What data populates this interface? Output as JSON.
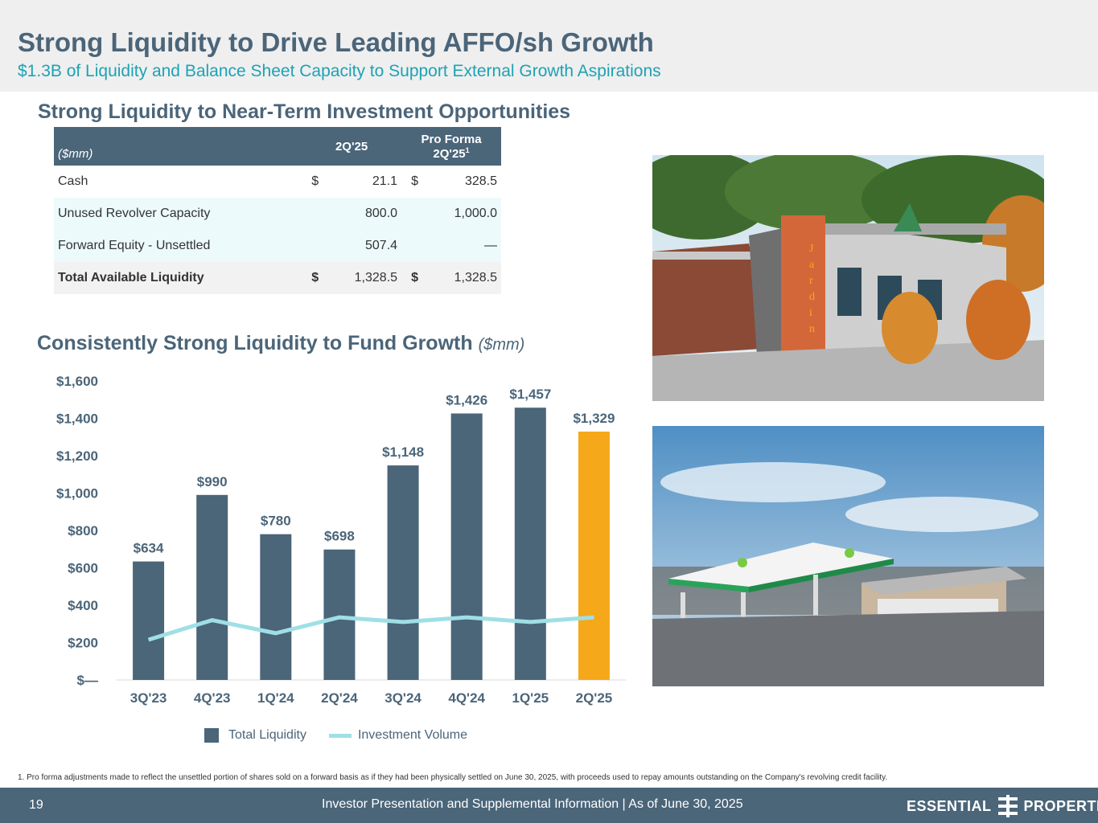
{
  "header": {
    "title": "Strong Liquidity to Drive Leading AFFO/sh Growth",
    "subtitle": "$1.3B of Liquidity and Balance Sheet Capacity to Support External Growth Aspirations"
  },
  "liquidity_table": {
    "section_title": "Strong Liquidity to Near-Term Investment Opportunities",
    "unit_label": "($mm)",
    "col1": "2Q'25",
    "col2_line1": "Pro Forma",
    "col2_line2": "2Q'25",
    "col2_footnote": "1",
    "rows": [
      {
        "label": "Cash",
        "cur1": "$",
        "v1": "21.1",
        "cur2": "$",
        "v2": "328.5"
      },
      {
        "label": "Unused Revolver Capacity",
        "cur1": "",
        "v1": "800.0",
        "cur2": "",
        "v2": "1,000.0"
      },
      {
        "label": "Forward Equity - Unsettled",
        "cur1": "",
        "v1": "507.4",
        "cur2": "",
        "v2": "—"
      },
      {
        "label": "Total Available Liquidity",
        "cur1": "$",
        "v1": "1,328.5",
        "cur2": "$",
        "v2": "1,328.5"
      }
    ]
  },
  "chart_section": {
    "title": "Consistently Strong Liquidity to Fund Growth",
    "unit": "($mm)"
  },
  "chart_data": {
    "type": "bar",
    "categories": [
      "3Q'23",
      "4Q'23",
      "1Q'24",
      "2Q'24",
      "3Q'24",
      "4Q'24",
      "1Q'25",
      "2Q'25"
    ],
    "series": [
      {
        "name": "Total Liquidity",
        "type": "bar",
        "values": [
          634,
          990,
          780,
          698,
          1148,
          1426,
          1457,
          1329
        ],
        "labels": [
          "$634",
          "$990",
          "$780",
          "$698",
          "$1,148",
          "$1,426",
          "$1,457",
          "$1,329"
        ]
      },
      {
        "name": "Investment Volume",
        "type": "line",
        "values": [
          215,
          320,
          250,
          335,
          310,
          335,
          310,
          335
        ]
      }
    ],
    "y_ticks": [
      "$—",
      "$200",
      "$400",
      "$600",
      "$800",
      "$1,000",
      "$1,200",
      "$1,400",
      "$1,600"
    ],
    "ylim": [
      0,
      1600
    ],
    "highlight_index": 7,
    "colors": {
      "bar": "#4b6579",
      "highlight": "#f6a81b",
      "line": "#9fdfe6"
    },
    "legend_position": "bottom"
  },
  "legend": {
    "bar_label": "Total Liquidity",
    "line_label": "Investment Volume"
  },
  "footnote": "1.  Pro forma adjustments made to reflect the unsettled portion of shares sold on a forward basis as if they had been physically settled on June 30, 2025, with proceeds used to repay amounts outstanding on the Company's revolving credit facility.",
  "footer": {
    "page": "19",
    "text": "Investor Presentation and Supplemental Information |  As of June 30, 2025",
    "logo_left": "ESSENTIAL",
    "logo_right": "PROPERTIES"
  },
  "photos": {
    "photo1_sign": "Jardin"
  }
}
